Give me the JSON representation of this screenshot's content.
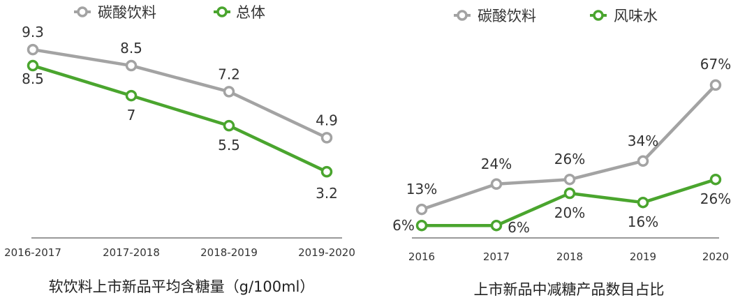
{
  "colors": {
    "gray": "#a3a3a3",
    "green": "#4aa52e"
  },
  "chart_data": [
    {
      "type": "line",
      "title": "软饮料上市新品平均含糖量（g/100ml）",
      "categories": [
        "2016-2017",
        "2017-2018",
        "2018-2019",
        "2019-2020"
      ],
      "series": [
        {
          "name": "碳酸饮料",
          "color": "gray",
          "values": [
            9.3,
            8.5,
            7.2,
            4.9
          ],
          "labels": [
            "9.3",
            "8.5",
            "7.2",
            "4.9"
          ]
        },
        {
          "name": "总体",
          "color": "green",
          "values": [
            8.5,
            7,
            5.5,
            3.2
          ],
          "labels": [
            "8.5",
            "7",
            "5.5",
            "3.2"
          ]
        }
      ],
      "legend": "top",
      "grid": false
    },
    {
      "type": "line",
      "title": "上市新品中减糖产品数目占比",
      "categories": [
        "2016",
        "2017",
        "2018",
        "2019",
        "2020"
      ],
      "series": [
        {
          "name": "碳酸饮料",
          "color": "gray",
          "values": [
            13,
            24,
            26,
            34,
            67
          ],
          "labels": [
            "13%",
            "24%",
            "26%",
            "34%",
            "67%"
          ]
        },
        {
          "name": "风味水",
          "color": "green",
          "values": [
            6,
            6,
            20,
            16,
            26
          ],
          "labels": [
            "6%",
            "6%",
            "20%",
            "16%",
            "26%"
          ]
        }
      ],
      "legend": "top",
      "grid": false
    }
  ]
}
